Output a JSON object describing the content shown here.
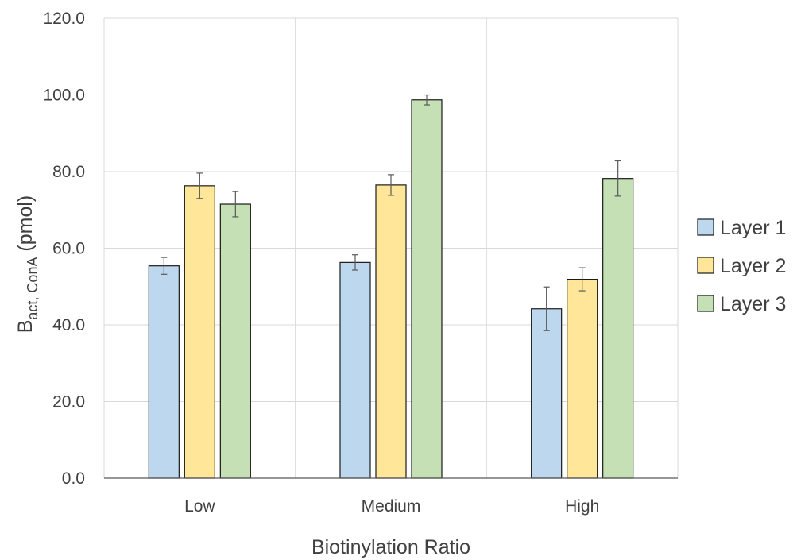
{
  "chart_data": {
    "type": "bar",
    "categories": [
      "Low",
      "Medium",
      "High"
    ],
    "series": [
      {
        "name": "Layer 1",
        "values": [
          55.4,
          56.3,
          44.2
        ],
        "errors": [
          2.2,
          2.0,
          5.7
        ],
        "color": "#bdd7ee"
      },
      {
        "name": "Layer 2",
        "values": [
          76.3,
          76.5,
          51.9
        ],
        "errors": [
          3.3,
          2.7,
          3.0
        ],
        "color": "#ffe699"
      },
      {
        "name": "Layer 3",
        "values": [
          71.5,
          98.7,
          78.2
        ],
        "errors": [
          3.3,
          1.3,
          4.6
        ],
        "color": "#c5e0b4"
      }
    ],
    "xlabel": "Biotinylation Ratio",
    "ylabel": {
      "main": "B",
      "subscript": "act, ConA",
      "unit": " (pmol)"
    },
    "ylim": [
      0,
      120
    ],
    "yticks": [
      "0.0",
      "20.0",
      "40.0",
      "60.0",
      "80.0",
      "100.0",
      "120.0"
    ],
    "grid": true,
    "legend_position": "right"
  }
}
